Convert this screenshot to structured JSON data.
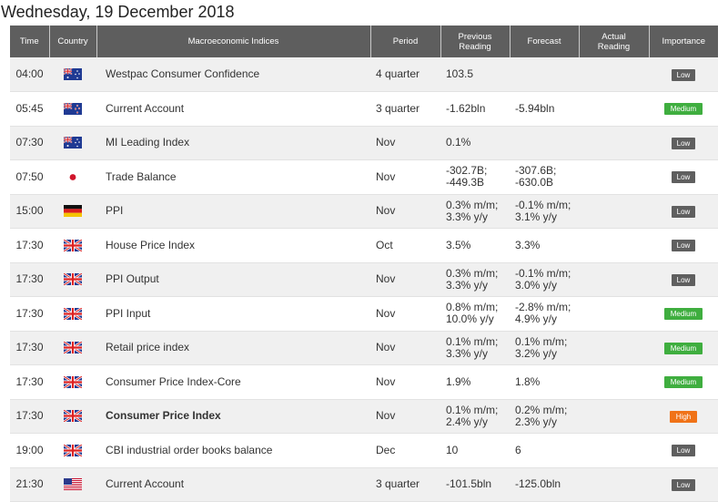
{
  "date_title": "Wednesday, 19 December 2018",
  "headers": {
    "time": "Time",
    "country": "Country",
    "index": "Macroeconomic Indices",
    "period": "Period",
    "previous_line1": "Previous",
    "previous_line2": "Reading",
    "forecast": "Forecast",
    "actual_line1": "Actual",
    "actual_line2": "Reading",
    "importance": "Importance"
  },
  "rows": [
    {
      "time": "04:00",
      "flag": "australia-flag-icon",
      "index": "Westpac Consumer Confidence",
      "period": "4 quarter",
      "prev1": "103.5",
      "prev2": "",
      "fore1": "",
      "fore2": "",
      "actual": "",
      "importance": "Low",
      "level": "low",
      "bold": false
    },
    {
      "time": "05:45",
      "flag": "new-zealand-flag-icon",
      "index": "Current Account",
      "period": "3 quarter",
      "prev1": "-1.62bln",
      "prev2": "",
      "fore1": "-5.94bln",
      "fore2": "",
      "actual": "",
      "importance": "Medium",
      "level": "medium",
      "bold": false
    },
    {
      "time": "07:30",
      "flag": "australia-flag-icon",
      "index": "MI Leading Index",
      "period": "Nov",
      "prev1": "0.1%",
      "prev2": "",
      "fore1": "",
      "fore2": "",
      "actual": "",
      "importance": "Low",
      "level": "low",
      "bold": false
    },
    {
      "time": "07:50",
      "flag": "japan-flag-icon",
      "index": "Trade Balance",
      "period": "Nov",
      "prev1": "-302.7B;",
      "prev2": "-449.3B",
      "fore1": "-307.6B;",
      "fore2": "-630.0B",
      "actual": "",
      "importance": "Low",
      "level": "low",
      "bold": false
    },
    {
      "time": "15:00",
      "flag": "germany-flag-icon",
      "index": "PPI",
      "period": "Nov",
      "prev1": "0.3% m/m;",
      "prev2": "3.3% y/y",
      "fore1": "-0.1% m/m;",
      "fore2": "3.1% y/y",
      "actual": "",
      "importance": "Low",
      "level": "low",
      "bold": false
    },
    {
      "time": "17:30",
      "flag": "uk-flag-icon",
      "index": "House Price Index",
      "period": "Oct",
      "prev1": "3.5%",
      "prev2": "",
      "fore1": "3.3%",
      "fore2": "",
      "actual": "",
      "importance": "Low",
      "level": "low",
      "bold": false
    },
    {
      "time": "17:30",
      "flag": "uk-flag-icon",
      "index": "PPI Output",
      "period": "Nov",
      "prev1": "0.3% m/m;",
      "prev2": "3.3% y/y",
      "fore1": "-0.1% m/m;",
      "fore2": "3.0% y/y",
      "actual": "",
      "importance": "Low",
      "level": "low",
      "bold": false
    },
    {
      "time": "17:30",
      "flag": "uk-flag-icon",
      "index": "PPI Input",
      "period": "Nov",
      "prev1": "0.8% m/m;",
      "prev2": "10.0% y/y",
      "fore1": "-2.8% m/m;",
      "fore2": "4.9% y/y",
      "actual": "",
      "importance": "Medium",
      "level": "medium",
      "bold": false
    },
    {
      "time": "17:30",
      "flag": "uk-flag-icon",
      "index": "Retail price index",
      "period": "Nov",
      "prev1": "0.1% m/m;",
      "prev2": "3.3% y/y",
      "fore1": "0.1% m/m;",
      "fore2": "3.2% y/y",
      "actual": "",
      "importance": "Medium",
      "level": "medium",
      "bold": false
    },
    {
      "time": "17:30",
      "flag": "uk-flag-icon",
      "index": "Consumer Price Index-Core",
      "period": "Nov",
      "prev1": "1.9%",
      "prev2": "",
      "fore1": "1.8%",
      "fore2": "",
      "actual": "",
      "importance": "Medium",
      "level": "medium",
      "bold": false
    },
    {
      "time": "17:30",
      "flag": "uk-flag-icon",
      "index": "Consumer Price Index",
      "period": "Nov",
      "prev1": "0.1% m/m;",
      "prev2": "2.4% y/y",
      "fore1": "0.2% m/m;",
      "fore2": "2.3% y/y",
      "actual": "",
      "importance": "High",
      "level": "high",
      "bold": true
    },
    {
      "time": "19:00",
      "flag": "uk-flag-icon",
      "index": "CBI industrial order books balance",
      "period": "Dec",
      "prev1": "10",
      "prev2": "",
      "fore1": "6",
      "fore2": "",
      "actual": "",
      "importance": "Low",
      "level": "low",
      "bold": false
    },
    {
      "time": "21:30",
      "flag": "usa-flag-icon",
      "index": "Current Account",
      "period": "3 quarter",
      "prev1": "-101.5bln",
      "prev2": "",
      "fore1": "-125.0bln",
      "fore2": "",
      "actual": "",
      "importance": "Low",
      "level": "low",
      "bold": false
    }
  ],
  "colors": {
    "header_bg": "#5e5e5e",
    "row_alt_bg": "#f0f0f0",
    "low": "#5f5f5f",
    "medium": "#3fae3f",
    "high": "#f07318"
  }
}
